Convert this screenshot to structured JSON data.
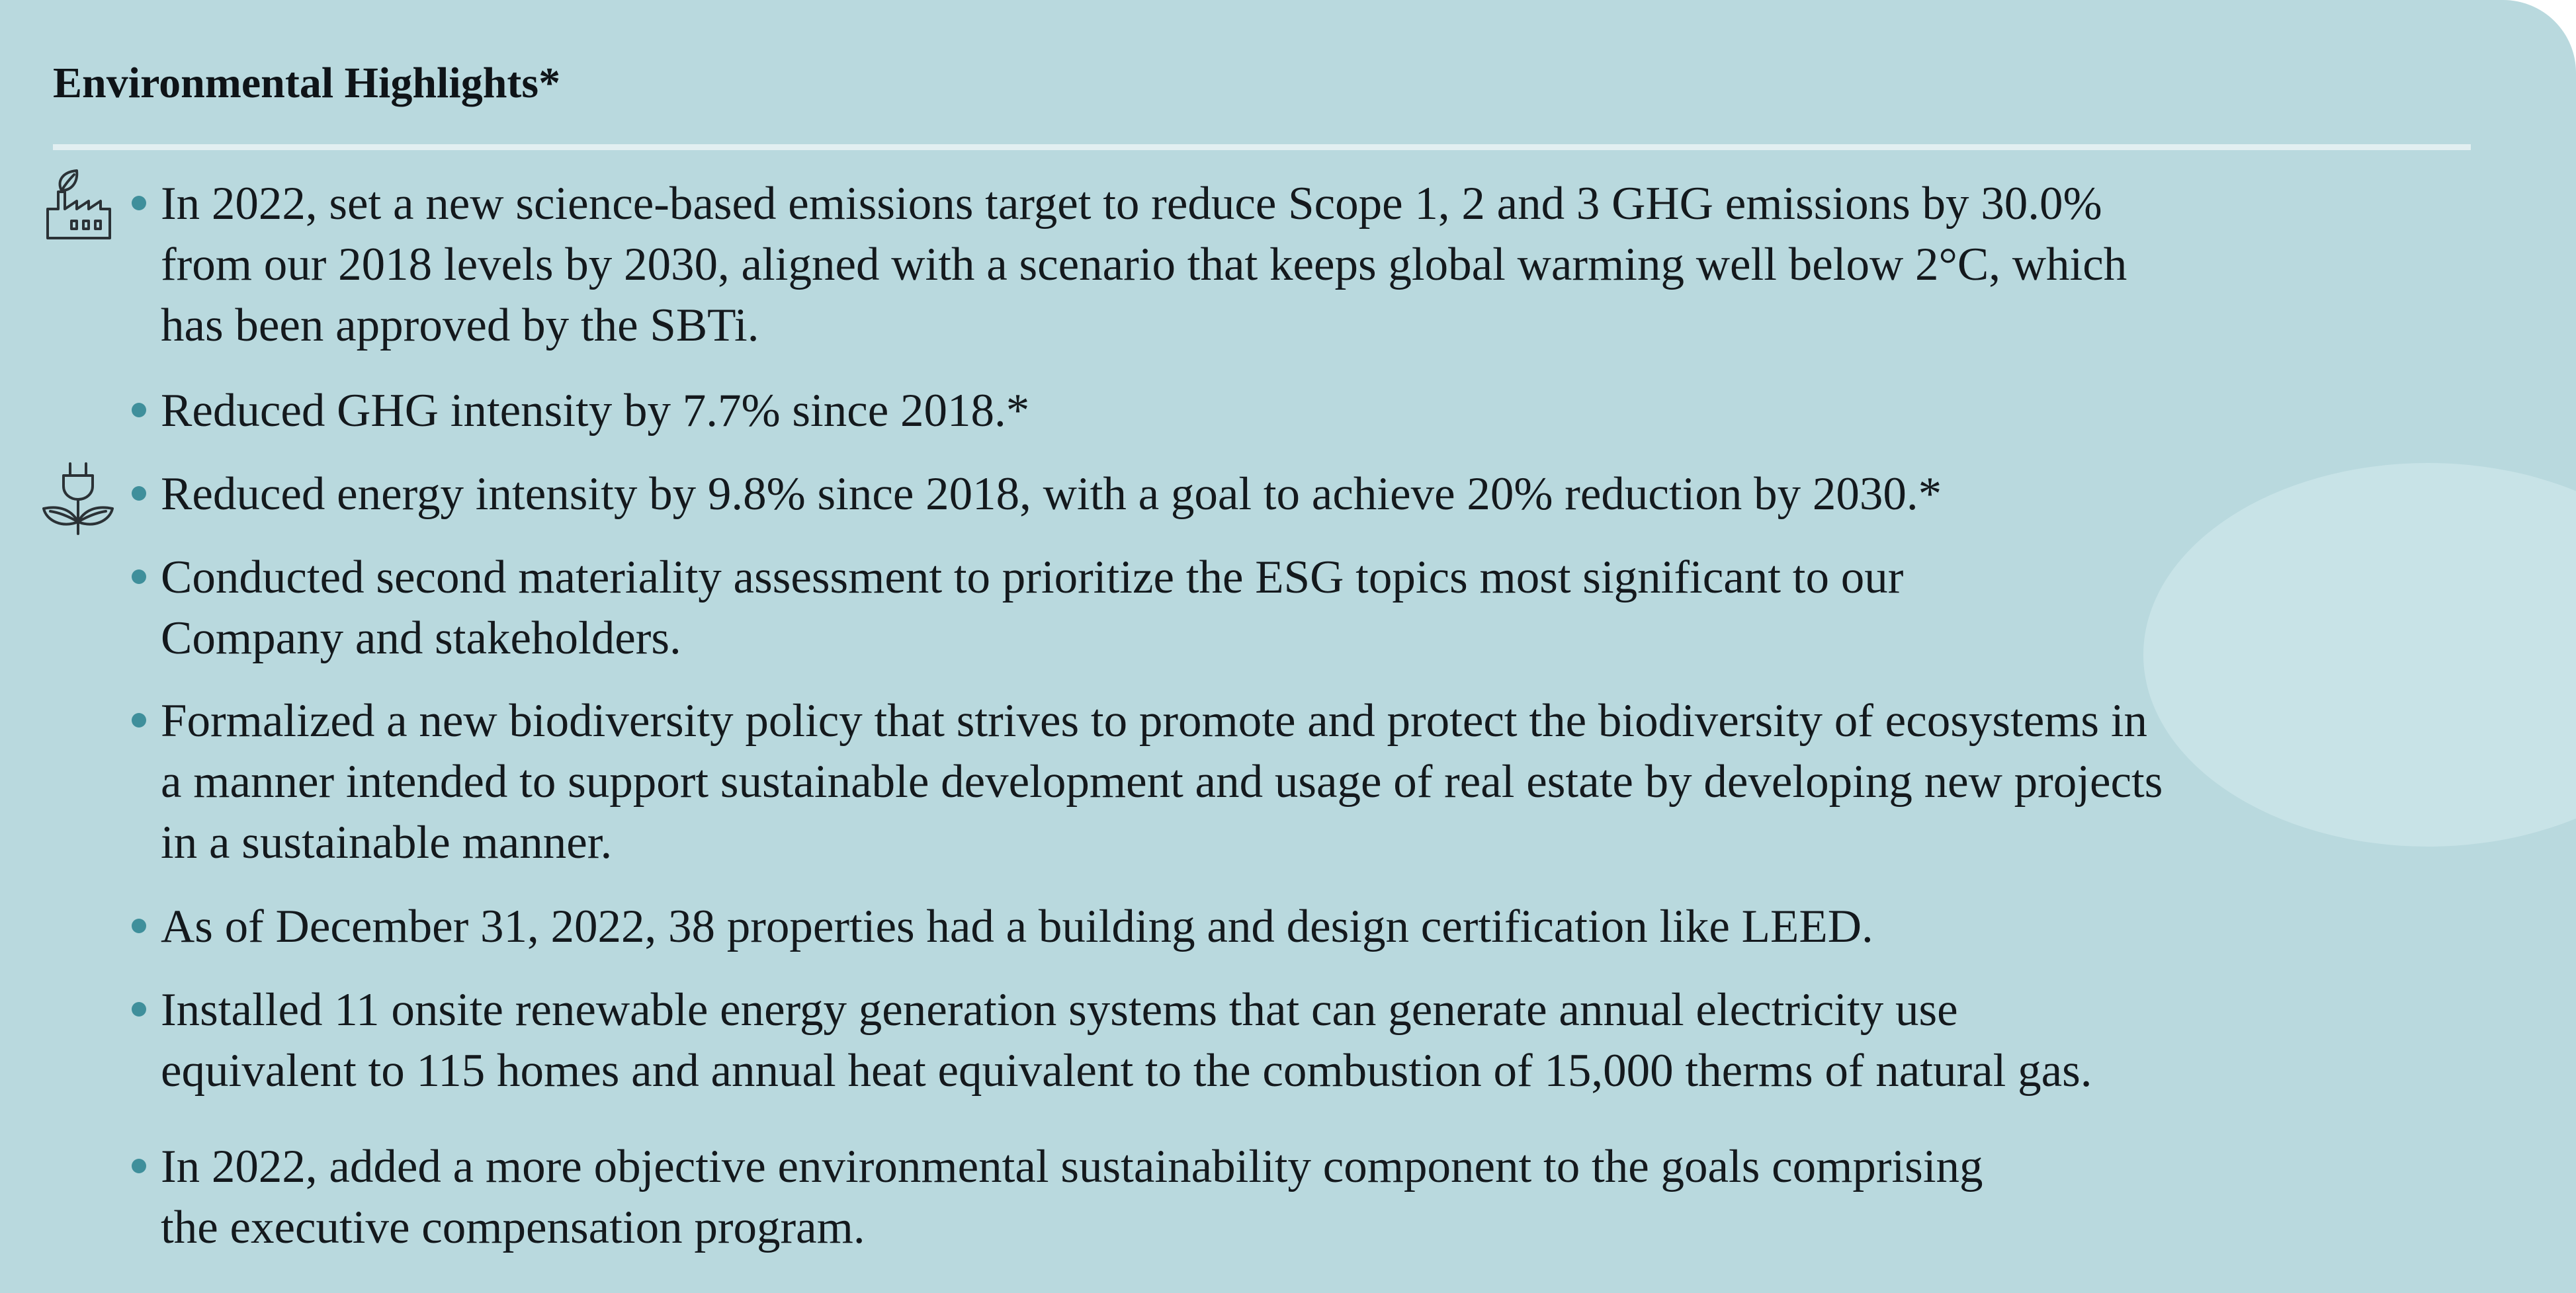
{
  "section": {
    "title": "Environmental Highlights*"
  },
  "icons": {
    "first": "factory-leaf-icon",
    "second": "plug-leaf-icon"
  },
  "highlights": [
    {
      "lines": [
        "In 2022, set a new science-based emissions target to reduce Scope 1, 2 and 3 GHG emissions by 30.0%",
        "from our 2018 levels by 2030, aligned with a scenario that keeps global warming well below 2°C, which",
        "has been approved by the SBTi."
      ]
    },
    {
      "lines": [
        "Reduced GHG intensity by 7.7% since 2018.*"
      ]
    },
    {
      "lines": [
        "Reduced energy intensity by 9.8% since 2018, with a goal to achieve 20% reduction by 2030.*"
      ]
    },
    {
      "lines": [
        "Conducted second materiality assessment to prioritize the ESG topics most significant to our",
        "Company and stakeholders."
      ]
    },
    {
      "lines": [
        "Formalized a new biodiversity policy that strives to promote and protect the biodiversity of ecosystems in",
        "a manner intended to support sustainable development and usage of real estate by developing new projects",
        "in a sustainable manner."
      ]
    },
    {
      "lines": [
        "As of December 31, 2022, 38 properties had a building and design certification like LEED."
      ]
    },
    {
      "lines": [
        "Installed 11 onsite renewable energy generation systems that can generate annual electricity use",
        "equivalent  to 115 homes and annual heat equivalent to the combustion of 15,000 therms of natural gas."
      ]
    },
    {
      "lines": [
        "In 2022, added a more objective environmental sustainability component to the goals comprising",
        "the executive compensation program."
      ]
    }
  ]
}
